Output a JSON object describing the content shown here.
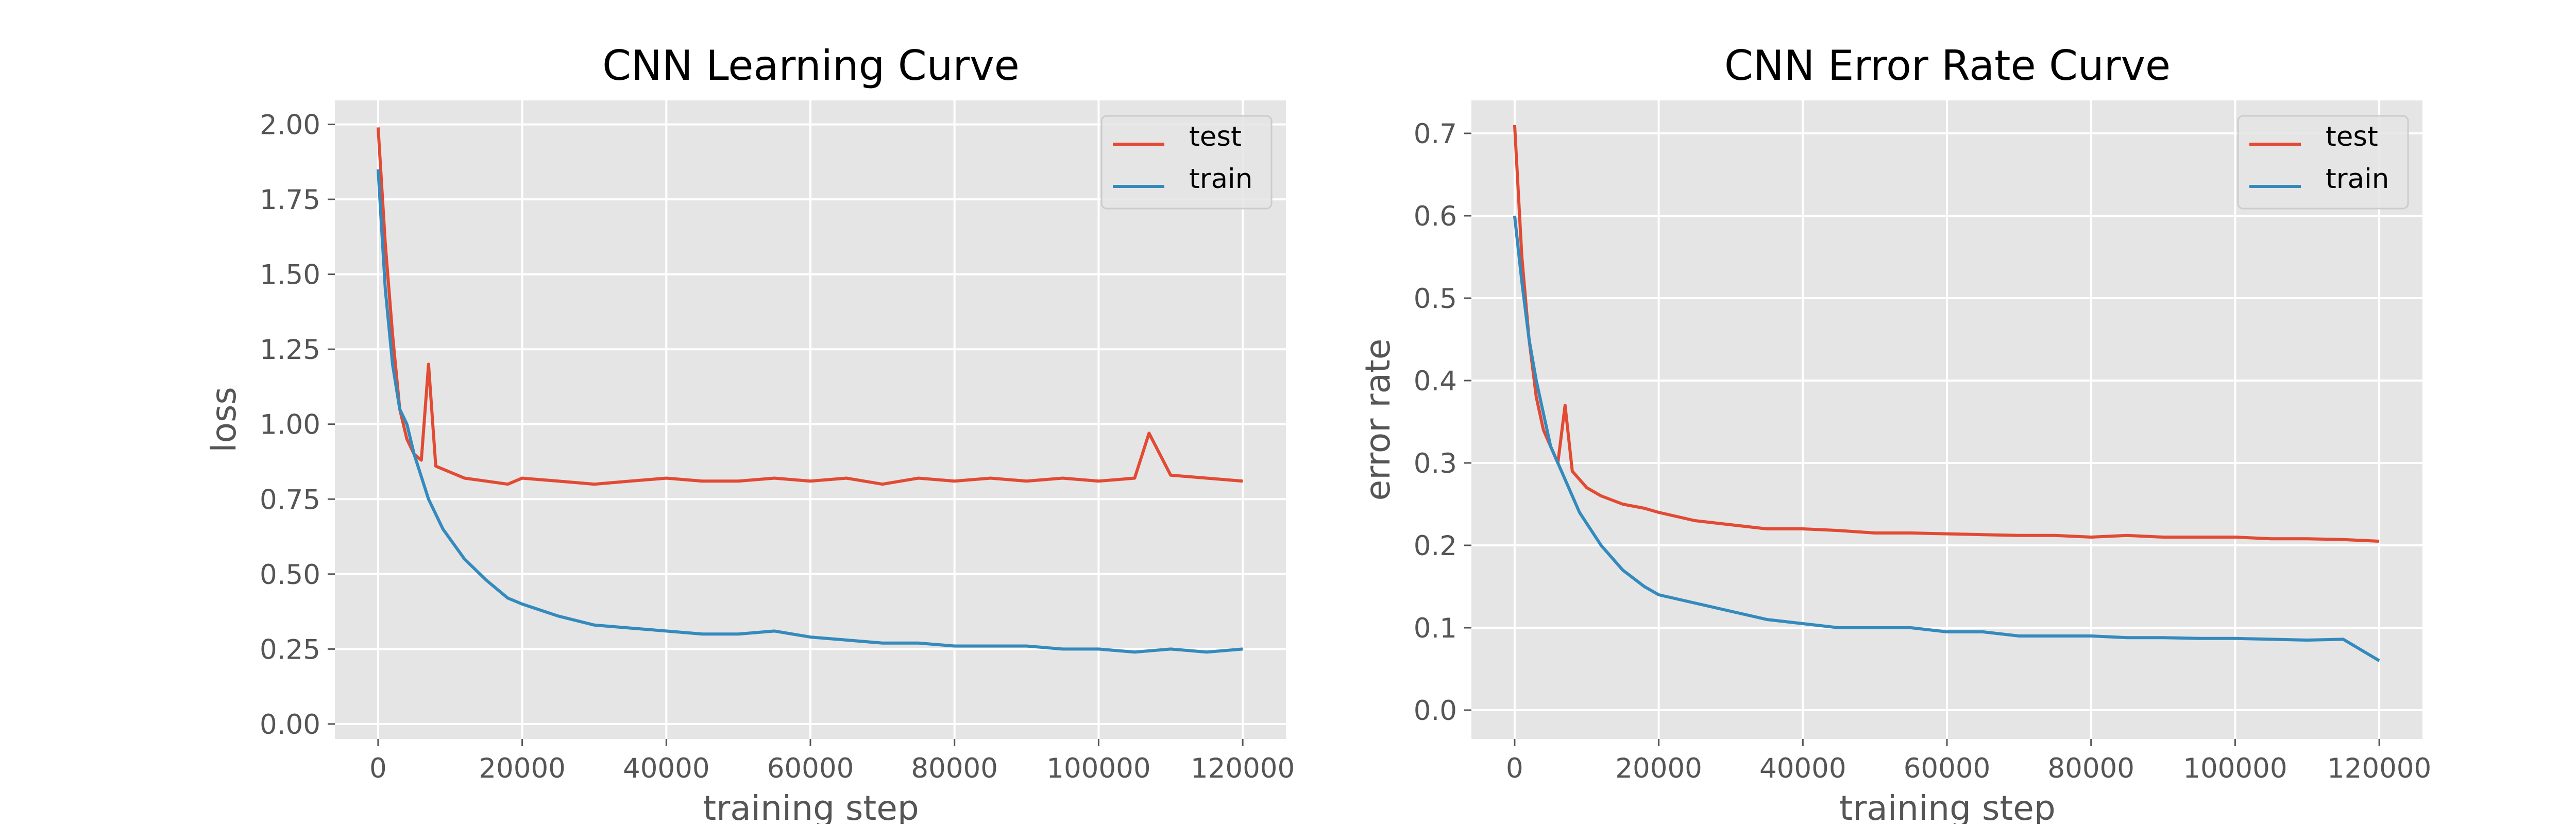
{
  "figure": {
    "background": "#ffffff",
    "plot_background": "#e5e5e5",
    "grid_color": "#ffffff"
  },
  "chart_data": [
    {
      "type": "line",
      "title": "CNN Learning Curve",
      "xlabel": "training step",
      "ylabel": "loss",
      "xlim": [
        -6000,
        126000
      ],
      "ylim": [
        -0.05,
        2.08
      ],
      "xticks": [
        0,
        20000,
        40000,
        60000,
        80000,
        100000,
        120000
      ],
      "xtick_labels": [
        "0",
        "20000",
        "40000",
        "60000",
        "80000",
        "100000",
        "120000"
      ],
      "yticks": [
        0.0,
        0.25,
        0.5,
        0.75,
        1.0,
        1.25,
        1.5,
        1.75,
        2.0
      ],
      "ytick_labels": [
        "0.00",
        "0.25",
        "0.50",
        "0.75",
        "1.00",
        "1.25",
        "1.50",
        "1.75",
        "2.00"
      ],
      "grid": true,
      "legend_position": "top-right",
      "series": [
        {
          "name": "test",
          "color": "#e24a33",
          "x": [
            0,
            1000,
            2000,
            3000,
            4000,
            5000,
            6000,
            7000,
            8000,
            10000,
            12000,
            15000,
            18000,
            20000,
            25000,
            30000,
            35000,
            40000,
            45000,
            50000,
            55000,
            60000,
            65000,
            70000,
            75000,
            80000,
            85000,
            90000,
            95000,
            100000,
            105000,
            107000,
            110000,
            115000,
            120000
          ],
          "y": [
            1.99,
            1.6,
            1.3,
            1.05,
            0.95,
            0.9,
            0.88,
            1.2,
            0.86,
            0.84,
            0.82,
            0.81,
            0.8,
            0.82,
            0.81,
            0.8,
            0.81,
            0.82,
            0.81,
            0.81,
            0.82,
            0.81,
            0.82,
            0.8,
            0.82,
            0.81,
            0.82,
            0.81,
            0.82,
            0.81,
            0.82,
            0.97,
            0.83,
            0.82,
            0.81
          ]
        },
        {
          "name": "train",
          "color": "#348abd",
          "x": [
            0,
            1000,
            2000,
            3000,
            4000,
            5000,
            7000,
            9000,
            12000,
            15000,
            18000,
            20000,
            25000,
            30000,
            35000,
            40000,
            45000,
            50000,
            55000,
            60000,
            65000,
            70000,
            75000,
            80000,
            85000,
            90000,
            95000,
            100000,
            105000,
            110000,
            115000,
            120000
          ],
          "y": [
            1.85,
            1.45,
            1.2,
            1.05,
            1.0,
            0.9,
            0.75,
            0.65,
            0.55,
            0.48,
            0.42,
            0.4,
            0.36,
            0.33,
            0.32,
            0.31,
            0.3,
            0.3,
            0.31,
            0.29,
            0.28,
            0.27,
            0.27,
            0.26,
            0.26,
            0.26,
            0.25,
            0.25,
            0.24,
            0.25,
            0.24,
            0.25
          ]
        }
      ]
    },
    {
      "type": "line",
      "title": "CNN Error Rate Curve",
      "xlabel": "training step",
      "ylabel": "error rate",
      "xlim": [
        -6000,
        126000
      ],
      "ylim": [
        -0.035,
        0.74
      ],
      "xticks": [
        0,
        20000,
        40000,
        60000,
        80000,
        100000,
        120000
      ],
      "xtick_labels": [
        "0",
        "20000",
        "40000",
        "60000",
        "80000",
        "100000",
        "120000"
      ],
      "yticks": [
        0.0,
        0.1,
        0.2,
        0.3,
        0.4,
        0.5,
        0.6,
        0.7
      ],
      "ytick_labels": [
        "0.0",
        "0.1",
        "0.2",
        "0.3",
        "0.4",
        "0.5",
        "0.6",
        "0.7"
      ],
      "grid": true,
      "legend_position": "top-right",
      "series": [
        {
          "name": "test",
          "color": "#e24a33",
          "x": [
            0,
            1000,
            2000,
            3000,
            4000,
            5000,
            6000,
            7000,
            8000,
            10000,
            12000,
            15000,
            18000,
            20000,
            25000,
            30000,
            35000,
            40000,
            45000,
            50000,
            55000,
            60000,
            65000,
            70000,
            75000,
            80000,
            85000,
            90000,
            95000,
            100000,
            105000,
            110000,
            115000,
            120000
          ],
          "y": [
            0.71,
            0.55,
            0.45,
            0.38,
            0.34,
            0.32,
            0.3,
            0.37,
            0.29,
            0.27,
            0.26,
            0.25,
            0.245,
            0.24,
            0.23,
            0.225,
            0.22,
            0.22,
            0.218,
            0.215,
            0.215,
            0.214,
            0.213,
            0.212,
            0.212,
            0.21,
            0.212,
            0.21,
            0.21,
            0.21,
            0.208,
            0.208,
            0.207,
            0.205
          ]
        },
        {
          "name": "train",
          "color": "#348abd",
          "x": [
            0,
            1000,
            2000,
            3000,
            4000,
            5000,
            7000,
            9000,
            12000,
            15000,
            18000,
            20000,
            25000,
            30000,
            35000,
            40000,
            45000,
            50000,
            55000,
            60000,
            65000,
            70000,
            75000,
            80000,
            85000,
            90000,
            95000,
            100000,
            105000,
            110000,
            115000,
            120000
          ],
          "y": [
            0.6,
            0.52,
            0.45,
            0.4,
            0.36,
            0.32,
            0.28,
            0.24,
            0.2,
            0.17,
            0.15,
            0.14,
            0.13,
            0.12,
            0.11,
            0.105,
            0.1,
            0.1,
            0.1,
            0.095,
            0.095,
            0.09,
            0.09,
            0.09,
            0.088,
            0.088,
            0.087,
            0.087,
            0.086,
            0.085,
            0.086,
            0.06
          ]
        }
      ]
    }
  ]
}
